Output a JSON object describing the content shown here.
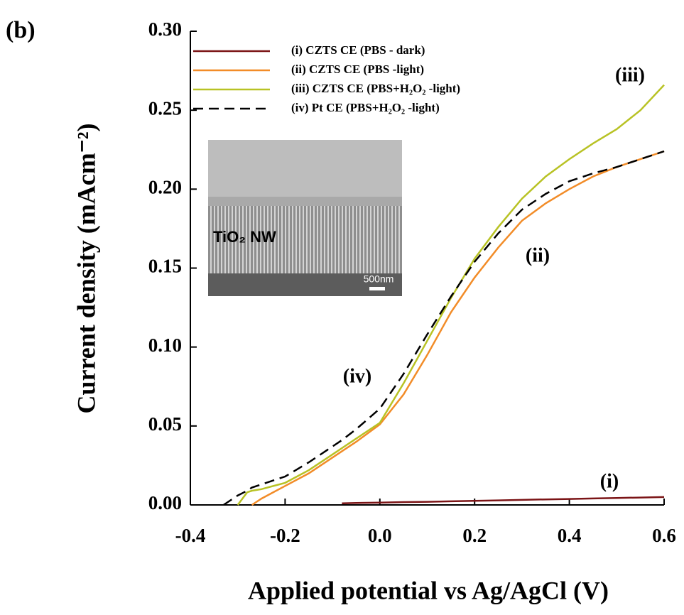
{
  "chart_data": {
    "type": "line",
    "panel_label": "(b)",
    "x_label": "Applied potential vs Ag/AgCl (V)",
    "y_label": "Current density (mAcm⁻²)",
    "x": [
      -0.33,
      -0.3,
      -0.28,
      -0.27,
      -0.25,
      -0.2,
      -0.15,
      -0.1,
      -0.08,
      -0.05,
      0,
      0.05,
      0.1,
      0.15,
      0.2,
      0.25,
      0.3,
      0.35,
      0.4,
      0.45,
      0.5,
      0.55,
      0.6
    ],
    "series": [
      {
        "name": "(i) CZTS CE (PBS - dark)",
        "color": "#7b1416",
        "style": "solid",
        "values": [
          null,
          null,
          null,
          null,
          null,
          null,
          null,
          null,
          0.001,
          0.0012,
          0.0015,
          0.0018,
          0.002,
          0.0023,
          0.0026,
          0.0029,
          0.0032,
          0.0035,
          0.0038,
          0.0041,
          0.0044,
          0.0047,
          0.005
        ]
      },
      {
        "name": "(ii) CZTS CE (PBS  -light)",
        "color": "#f28c28",
        "style": "solid",
        "values": [
          null,
          null,
          null,
          0,
          0.004,
          0.012,
          0.02,
          0.03,
          0.034,
          0.04,
          0.051,
          0.07,
          0.095,
          0.122,
          0.144,
          0.163,
          0.18,
          0.191,
          0.2,
          0.208,
          0.214,
          0.219,
          0.224
        ]
      },
      {
        "name": "(iii) CZTS CE (PBS+H₂O₂ -light)",
        "color": "#b8c224",
        "style": "solid",
        "values": [
          null,
          0,
          0.008,
          0.009,
          0.01,
          0.014,
          0.022,
          0.032,
          0.036,
          0.042,
          0.052,
          0.077,
          0.104,
          0.131,
          0.156,
          0.176,
          0.194,
          0.208,
          0.219,
          0.229,
          0.238,
          0.25,
          0.266
        ]
      },
      {
        "name": "(iv) Pt CE (PBS+H₂O₂ -light)",
        "color": "#000000",
        "style": "dashed",
        "values": [
          0,
          0.006,
          0.009,
          0.011,
          0.013,
          0.018,
          0.027,
          0.037,
          0.041,
          0.048,
          0.061,
          0.083,
          0.108,
          0.132,
          0.154,
          0.172,
          0.187,
          0.197,
          0.205,
          0.21,
          0.214,
          0.219,
          0.224
        ]
      }
    ],
    "xlim": [
      -0.4,
      0.6
    ],
    "xticks": [
      -0.4,
      -0.2,
      {
        "value": 0,
        "label": "0.0"
      },
      0.2,
      0.4,
      0.6
    ],
    "ylim": [
      0,
      0.3
    ],
    "yticks": [
      {
        "value": 0,
        "label": "0.00"
      },
      0.05,
      {
        "value": 0.1,
        "label": "0.10"
      },
      0.15,
      {
        "value": 0.2,
        "label": "0.20"
      },
      0.25,
      {
        "value": 0.3,
        "label": "0.30"
      }
    ],
    "annotations": [
      "(i)",
      "(ii)",
      "(iii)",
      "(iv)"
    ],
    "inset": {
      "label": "TiO₂ NW",
      "scale_bar": "500nm"
    }
  }
}
